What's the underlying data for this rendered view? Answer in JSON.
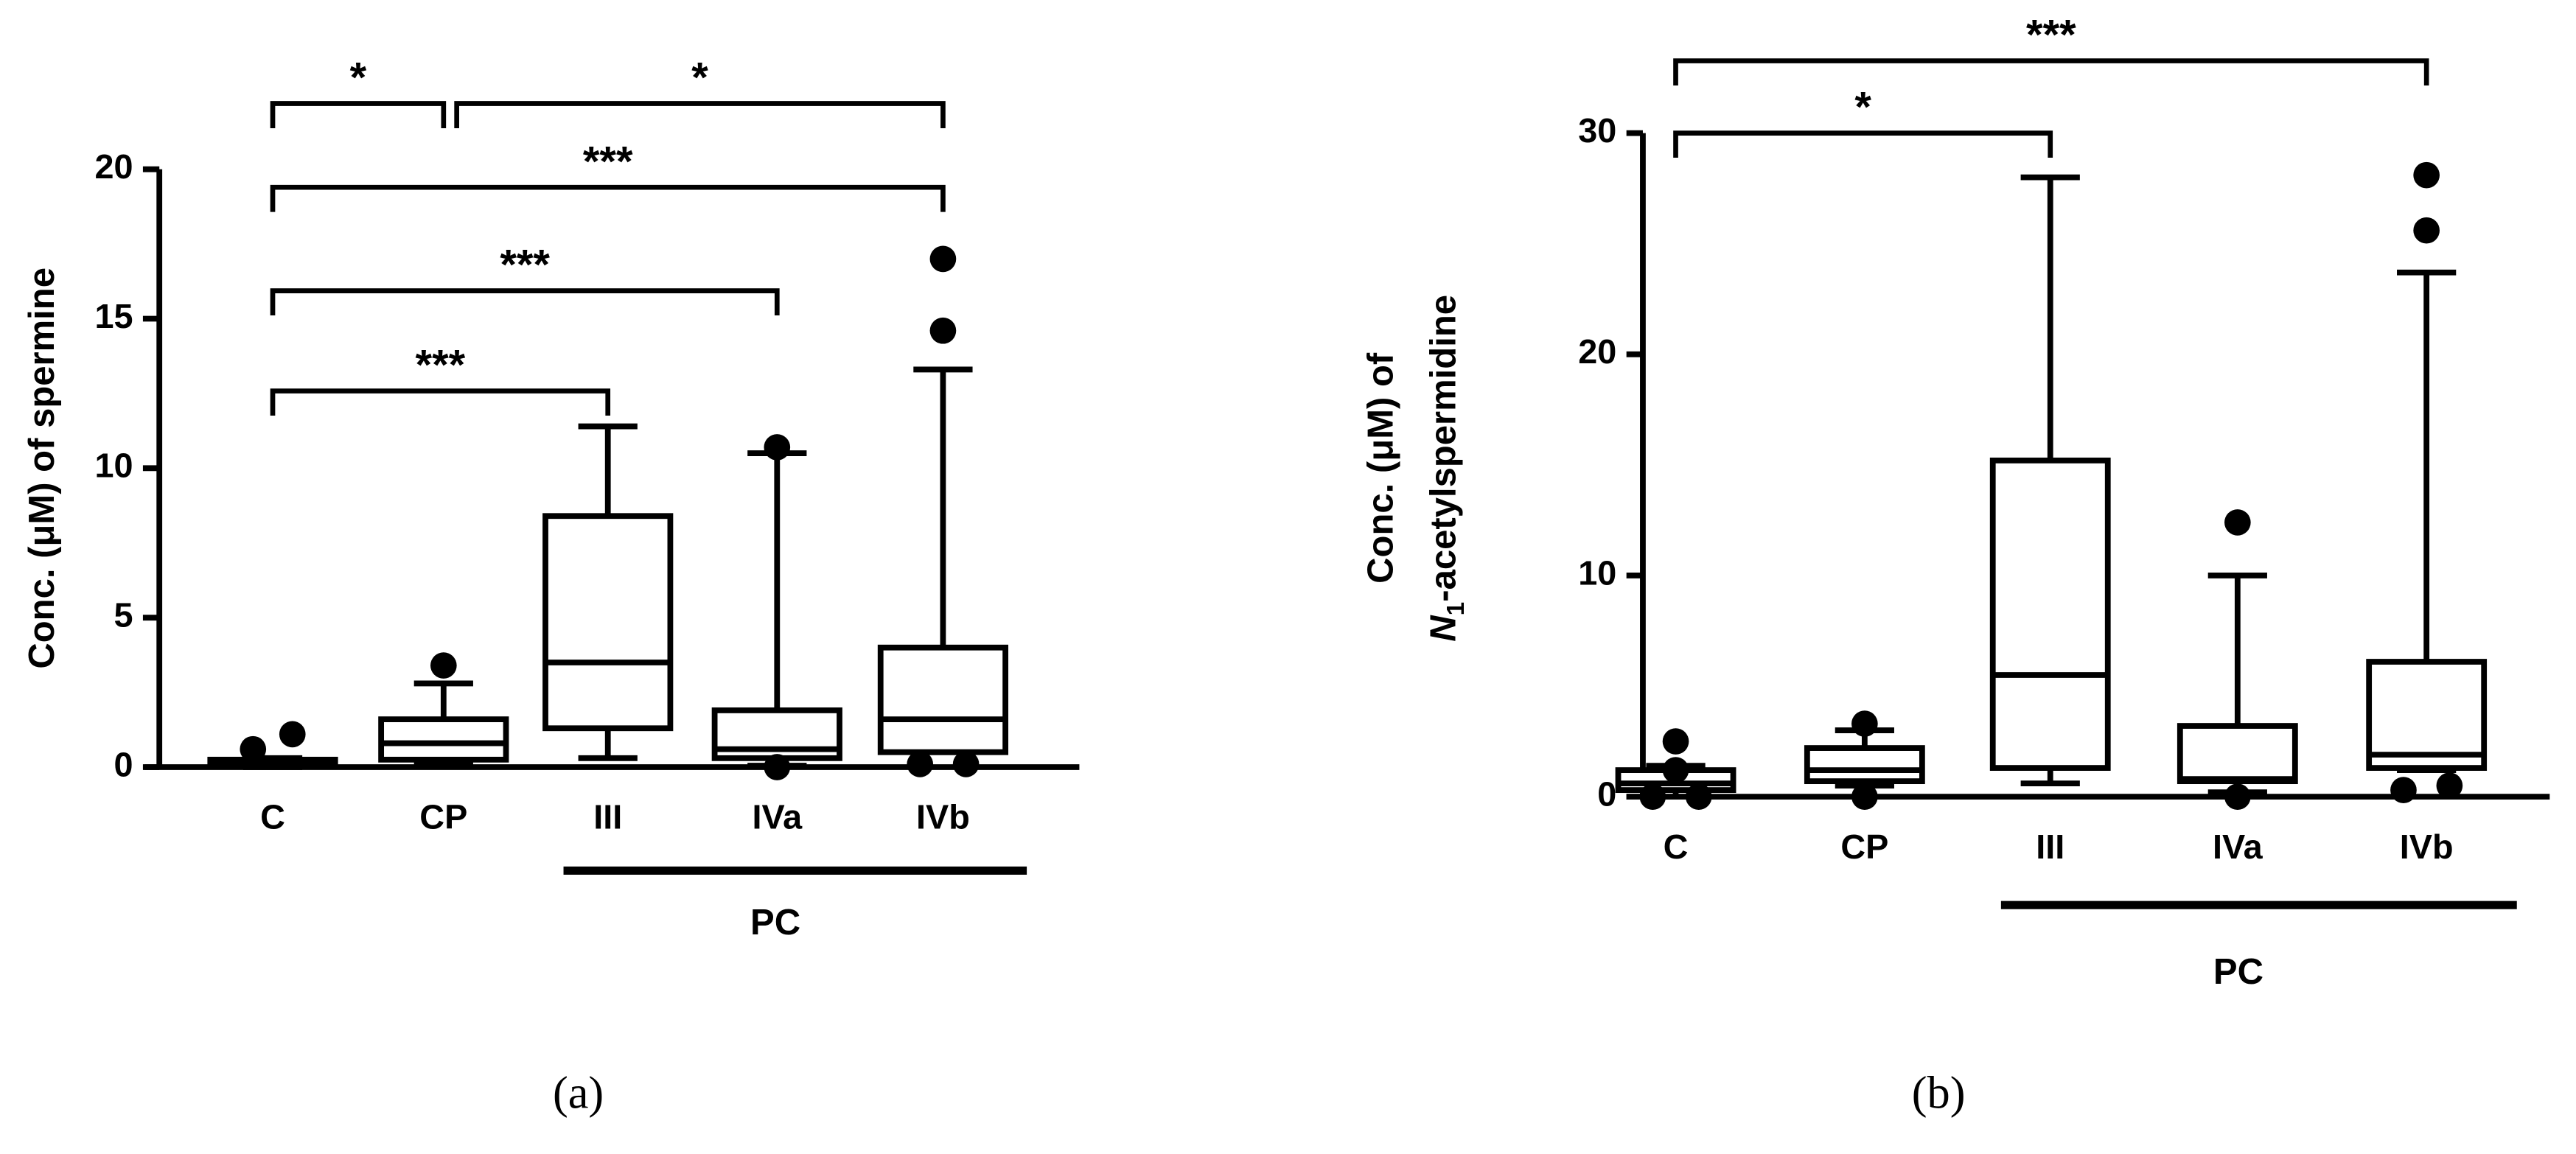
{
  "chart_data": [
    {
      "type": "box",
      "ylabel": "Conc. (μM) of spermine",
      "categories": [
        "C",
        "CP",
        "III",
        "IVa",
        "IVb"
      ],
      "boxes": [
        {
          "min": 0,
          "q1": 0.05,
          "median": 0.15,
          "q3": 0.25,
          "max": 0.3,
          "outliers": [
            0.6,
            1.1
          ]
        },
        {
          "min": 0.1,
          "q1": 0.25,
          "median": 0.8,
          "q3": 1.6,
          "max": 2.8,
          "outliers": [
            3.4
          ]
        },
        {
          "min": 0.3,
          "q1": 1.3,
          "median": 3.5,
          "q3": 8.4,
          "max": 11.4,
          "outliers": []
        },
        {
          "min": 0.05,
          "q1": 0.3,
          "median": 0.6,
          "q3": 1.9,
          "max": 10.5,
          "outliers": [
            10.7,
            0
          ]
        },
        {
          "min": 0.5,
          "q1": 0.5,
          "median": 1.6,
          "q3": 4.0,
          "max": 13.3,
          "outliers": [
            17.0,
            14.6,
            0.1,
            0.1
          ]
        }
      ],
      "ylim": [
        0,
        20
      ],
      "yticks": [
        0,
        5,
        10,
        15,
        20
      ],
      "group": {
        "label": "PC",
        "members": [
          2,
          3,
          4
        ]
      },
      "annotations": [
        {
          "label": "*",
          "between": [
            0,
            1
          ]
        },
        {
          "label": "*",
          "between": [
            1,
            4
          ]
        },
        {
          "label": "***",
          "between": [
            0,
            4
          ]
        },
        {
          "label": "***",
          "between": [
            0,
            3
          ]
        },
        {
          "label": "***",
          "between": [
            0,
            2
          ]
        }
      ],
      "caption": "(a)"
    },
    {
      "type": "box",
      "ylabel": {
        "line1": "Conc. (μM) of",
        "line2": [
          "N",
          "1",
          "-acetylspermidine"
        ]
      },
      "categories": [
        "C",
        "CP",
        "III",
        "IVa",
        "IVb"
      ],
      "boxes": [
        {
          "min": 0,
          "q1": 0.3,
          "median": 0.6,
          "q3": 1.2,
          "max": 1.4,
          "outliers": [
            2.5,
            1.2,
            0,
            0
          ]
        },
        {
          "min": 0.5,
          "q1": 0.7,
          "median": 1.2,
          "q3": 2.2,
          "max": 3.0,
          "outliers": [
            3.3,
            0
          ]
        },
        {
          "min": 0.6,
          "q1": 1.3,
          "median": 5.5,
          "q3": 15.2,
          "max": 28.0,
          "outliers": []
        },
        {
          "min": 0.2,
          "q1": 0.7,
          "median": 0.8,
          "q3": 3.2,
          "max": 10.0,
          "outliers": [
            12.4,
            0
          ]
        },
        {
          "min": 1.2,
          "q1": 1.3,
          "median": 1.9,
          "q3": 6.1,
          "max": 23.7,
          "outliers": [
            28.1,
            25.6,
            0.3,
            0.5
          ]
        }
      ],
      "ylim": [
        0,
        30
      ],
      "yticks": [
        0,
        10,
        20,
        30
      ],
      "group": {
        "label": "PC",
        "members": [
          2,
          3,
          4
        ]
      },
      "annotations": [
        {
          "label": "***",
          "between": [
            0,
            4
          ]
        },
        {
          "label": "*",
          "between": [
            0,
            2
          ]
        }
      ],
      "caption": "(b)"
    }
  ]
}
